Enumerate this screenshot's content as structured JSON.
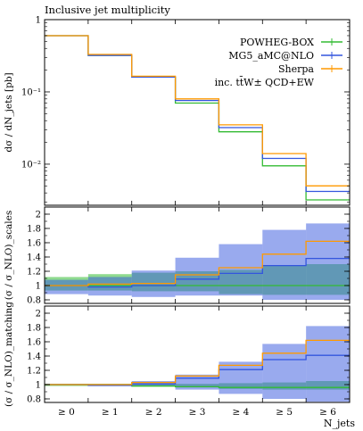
{
  "title": "Inclusive jet multiplicity",
  "colors": {
    "powheg": "#33bb33",
    "mg5": "#3355dd",
    "sherpa": "#ff9900"
  },
  "chart_data": [
    {
      "type": "line",
      "panel": "main",
      "title": "Inclusive jet multiplicity",
      "ylabel": "dσ / dN_jets [pb]",
      "yscale": "log",
      "ylim": [
        0.0027,
        1.0
      ],
      "yticks": [
        {
          "v": 1,
          "label": "1"
        },
        {
          "v": 0.1,
          "label": "10⁻¹"
        },
        {
          "v": 0.01,
          "label": "10⁻²"
        }
      ],
      "categories": [
        "≥ 0",
        "≥ 1",
        "≥ 2",
        "≥ 3",
        "≥ 4",
        "≥ 5",
        "≥ 6"
      ],
      "legend": {
        "placement": "top-right",
        "note": "inc. tt̄W± QCD+EW"
      },
      "series": [
        {
          "name": "POWHEG-BOX",
          "color_key": "powheg",
          "values": [
            0.6,
            0.32,
            0.16,
            0.07,
            0.028,
            0.0095,
            0.0032
          ]
        },
        {
          "name": "MG5_aMC@NLO",
          "color_key": "mg5",
          "values": [
            0.6,
            0.32,
            0.16,
            0.076,
            0.032,
            0.012,
            0.0042
          ]
        },
        {
          "name": "Sherpa",
          "color_key": "sherpa",
          "values": [
            0.6,
            0.33,
            0.165,
            0.08,
            0.035,
            0.014,
            0.005
          ]
        }
      ]
    },
    {
      "type": "line",
      "panel": "ratio-scales",
      "ylabel": "(σ / σ_NLO)_scales",
      "ylim": [
        0.75,
        2.1
      ],
      "yticks": [
        {
          "v": 0.8,
          "label": "0.8"
        },
        {
          "v": 1.0,
          "label": "1"
        },
        {
          "v": 1.2,
          "label": "1.2"
        },
        {
          "v": 1.4,
          "label": "1.4"
        },
        {
          "v": 1.6,
          "label": "1.6"
        },
        {
          "v": 1.8,
          "label": "1.8"
        },
        {
          "v": 2.0,
          "label": "2"
        }
      ],
      "categories": [
        "≥ 0",
        "≥ 1",
        "≥ 2",
        "≥ 3",
        "≥ 4",
        "≥ 5",
        "≥ 6"
      ],
      "series": [
        {
          "name": "POWHEG-BOX",
          "color_key": "powheg",
          "values": [
            1.0,
            1.0,
            1.0,
            1.0,
            1.0,
            1.0,
            1.0
          ],
          "band_lo": [
            0.93,
            0.93,
            0.92,
            0.92,
            0.88,
            0.87,
            0.87
          ],
          "band_hi": [
            1.12,
            1.16,
            1.18,
            1.2,
            1.22,
            1.28,
            1.3
          ]
        },
        {
          "name": "MG5_aMC@NLO",
          "color_key": "mg5",
          "values": [
            1.0,
            0.98,
            1.0,
            1.09,
            1.17,
            1.28,
            1.38
          ],
          "band_lo": [
            0.88,
            0.86,
            0.84,
            0.86,
            0.86,
            0.8,
            0.8
          ],
          "band_hi": [
            1.08,
            1.12,
            1.21,
            1.39,
            1.58,
            1.78,
            1.87
          ]
        },
        {
          "name": "Sherpa",
          "color_key": "sherpa",
          "values": [
            1.0,
            1.02,
            1.03,
            1.15,
            1.25,
            1.44,
            1.62
          ]
        }
      ]
    },
    {
      "type": "line",
      "panel": "ratio-matching",
      "ylabel": "(σ / σ_NLO)_matching",
      "xlabel": "N_jets",
      "ylim": [
        0.75,
        2.1
      ],
      "yticks": [
        {
          "v": 0.8,
          "label": "0.8"
        },
        {
          "v": 1.0,
          "label": "1"
        },
        {
          "v": 1.2,
          "label": "1.2"
        },
        {
          "v": 1.4,
          "label": "1.4"
        },
        {
          "v": 1.6,
          "label": "1.6"
        },
        {
          "v": 1.8,
          "label": "1.8"
        },
        {
          "v": 2.0,
          "label": "2"
        }
      ],
      "categories": [
        "≥ 0",
        "≥ 1",
        "≥ 2",
        "≥ 3",
        "≥ 4",
        "≥ 5",
        "≥ 6"
      ],
      "series": [
        {
          "name": "POWHEG-BOX",
          "color_key": "powheg",
          "values": [
            1.0,
            1.0,
            0.98,
            0.97,
            0.96,
            0.96,
            0.96
          ],
          "band_lo": [
            0.98,
            0.98,
            0.97,
            0.96,
            0.94,
            0.93,
            0.93
          ],
          "band_hi": [
            1.01,
            1.01,
            1.01,
            1.01,
            1.02,
            1.03,
            1.05
          ]
        },
        {
          "name": "MG5_aMC@NLO",
          "color_key": "mg5",
          "values": [
            1.0,
            0.99,
            1.01,
            1.09,
            1.21,
            1.35,
            1.41
          ],
          "band_lo": [
            0.99,
            0.98,
            0.98,
            0.93,
            0.87,
            0.8,
            0.76
          ],
          "band_hi": [
            1.01,
            1.01,
            1.05,
            1.14,
            1.32,
            1.57,
            1.82
          ]
        },
        {
          "name": "Sherpa",
          "color_key": "sherpa",
          "values": [
            1.0,
            1.0,
            1.03,
            1.12,
            1.27,
            1.44,
            1.62
          ]
        }
      ]
    }
  ]
}
